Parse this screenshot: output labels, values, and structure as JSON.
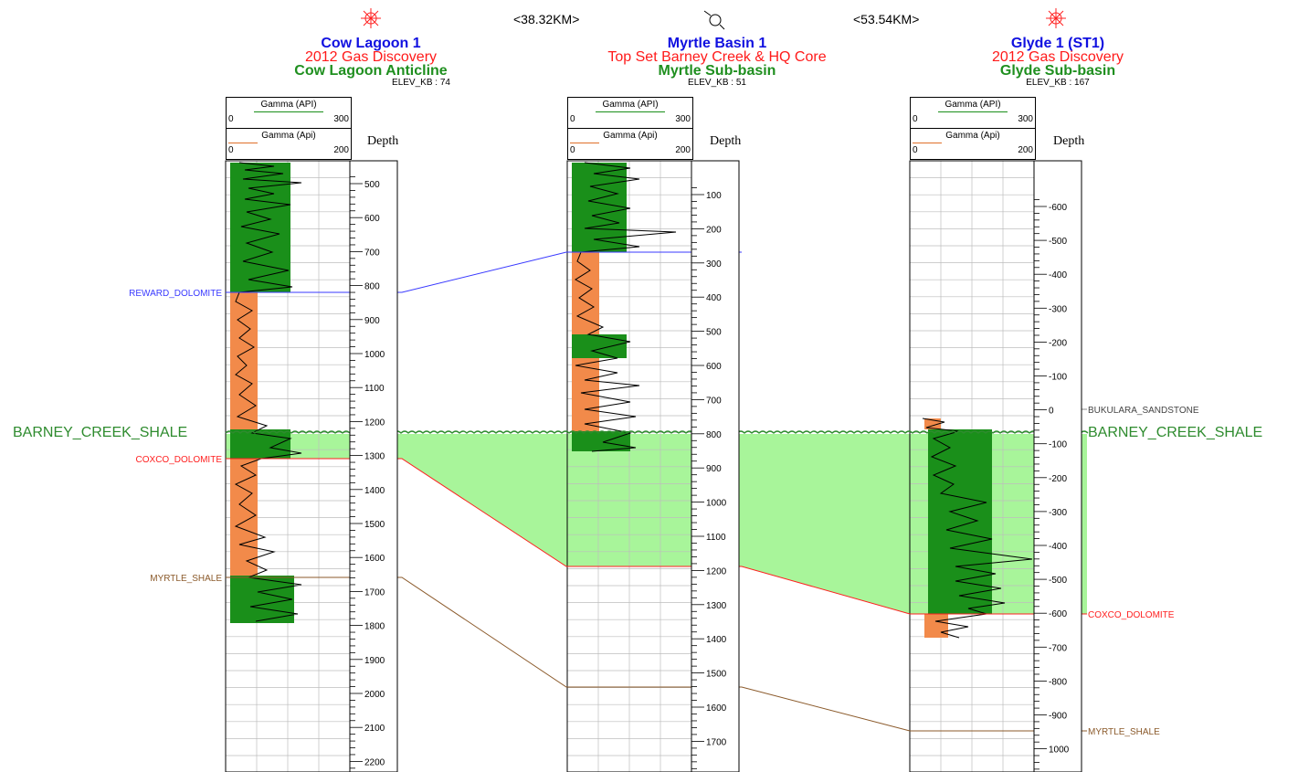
{
  "wells": [
    {
      "name": "Cow Lagoon 1",
      "subtitle": "2012 Gas Discovery",
      "area": "Cow Lagoon Anticline",
      "elev": "ELEV_KB : 74",
      "symbol": "gas-well",
      "curve1": {
        "name": "Gamma (API)",
        "min": "0",
        "max": "300"
      },
      "curve2": {
        "name": "Gamma (Api)",
        "min": "0",
        "max": "200"
      },
      "depth_label": "Depth",
      "depth_ticks": [
        "500",
        "600",
        "700",
        "800",
        "900",
        "1000",
        "1100",
        "1200",
        "1300",
        "1400",
        "1500",
        "1600",
        "1700",
        "1800",
        "1900",
        "2000",
        "2100",
        "2200"
      ]
    },
    {
      "name": "Myrtle Basin 1",
      "subtitle": "Top Set Barney Creek & HQ Core",
      "area": "Myrtle Sub-basin",
      "elev": "ELEV_KB : 51",
      "symbol": "core-well",
      "curve1": {
        "name": "Gamma (API)",
        "min": "0",
        "max": "300"
      },
      "curve2": {
        "name": "Gamma (Api)",
        "min": "0",
        "max": "200"
      },
      "depth_label": "Depth",
      "depth_ticks": [
        "100",
        "200",
        "300",
        "400",
        "500",
        "600",
        "700",
        "800",
        "900",
        "1000",
        "1100",
        "1200",
        "1300",
        "1400",
        "1500",
        "1600",
        "1700"
      ]
    },
    {
      "name": "Glyde 1 (ST1)",
      "subtitle": "2012 Gas Discovery",
      "area": "Glyde Sub-basin",
      "elev": "ELEV_KB : 167",
      "symbol": "gas-well",
      "curve1": {
        "name": "Gamma (API)",
        "min": "0",
        "max": "300"
      },
      "curve2": {
        "name": "Gamma (Api)",
        "min": "0",
        "max": "200"
      },
      "depth_label": "Depth",
      "depth_ticks": [
        "-600",
        "-500",
        "-400",
        "-300",
        "-200",
        "-100",
        "0",
        "-100",
        "-200",
        "-300",
        "-400",
        "-500",
        "-600",
        "-700",
        "-800",
        "-900",
        "1000"
      ]
    }
  ],
  "distances": [
    "<38.32KM>",
    "<53.54KM>"
  ],
  "horizons": {
    "reward_dolomite": "REWARD_DOLOMITE",
    "barney_creek_left": "BARNEY_CREEK_SHALE",
    "barney_creek_right": "BARNEY_CREEK_SHALE",
    "coxco_left": "COXCO_DOLOMITE",
    "coxco_right": "COXCO_DOLOMITE",
    "myrtle_left": "MYRTLE_SHALE",
    "myrtle_right": "MYRTLE_SHALE",
    "bukulara": "BUKULARA_SANDSTONE"
  },
  "colors": {
    "reward": "#3a3aff",
    "barney": "#2e8b2e",
    "barney_fill": "#a8f59a",
    "coxco": "#ff2020",
    "myrtle": "#8b5a2b",
    "sand_fill": "#f28a4a",
    "shale_fill": "#1a8f1a",
    "well_name": "#1010e0",
    "subtitle": "#ff1a1a",
    "area": "#1f8f1f"
  }
}
